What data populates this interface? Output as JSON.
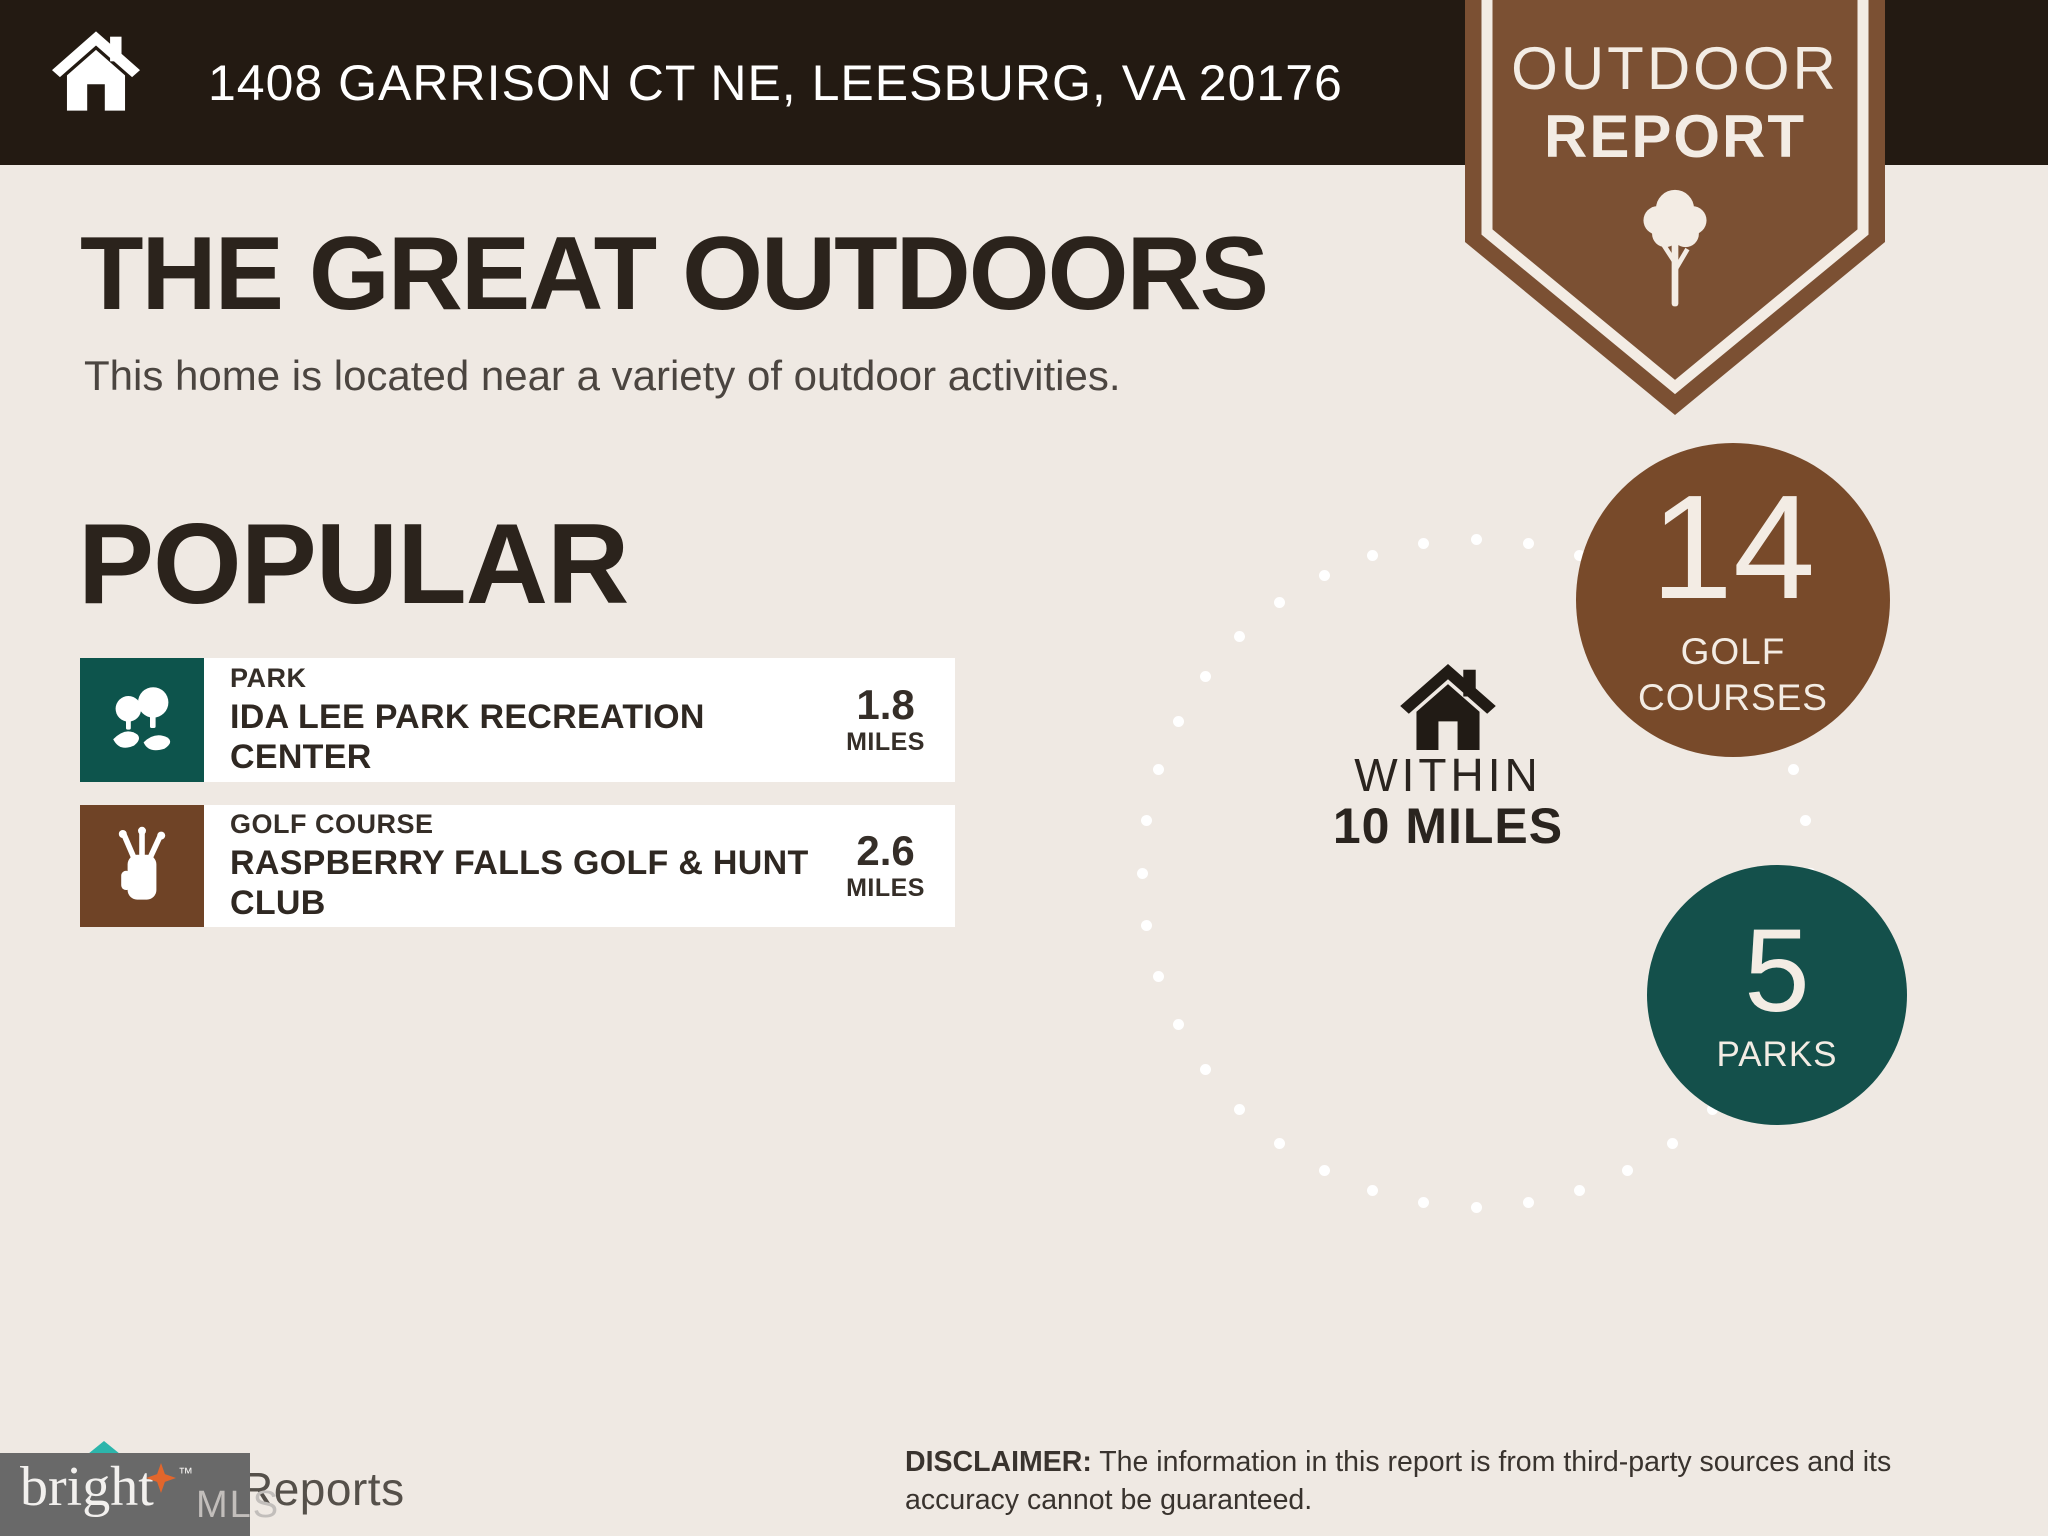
{
  "header": {
    "address": "1408 GARRISON CT NE, LEESBURG, VA 20176"
  },
  "badge": {
    "title_line1": "OUTDOOR",
    "title_line2": "REPORT"
  },
  "intro": {
    "title": "THE GREAT OUTDOORS",
    "subtitle": "This home is located near a variety of outdoor activities."
  },
  "popular": {
    "heading": "POPULAR",
    "items": [
      {
        "category": "PARK",
        "name": "IDA LEE PARK RECREATION CENTER",
        "name_lines": [
          "IDA LEE PARK RECREATION CENTER"
        ],
        "distance": "1.8",
        "unit": "MILES",
        "icon": "park-trees-icon",
        "accent_color": "#0d544c"
      },
      {
        "category": "GOLF COURSE",
        "name": "RASPBERRY FALLS GOLF & HUNT CLUB",
        "name_lines": [
          "RASPBERRY FALLS GOLF & HUNT",
          "CLUB"
        ],
        "distance": "2.6",
        "unit": "MILES",
        "icon": "golf-bag-icon",
        "accent_color": "#6f4326"
      }
    ]
  },
  "radius": {
    "line1": "WITHIN",
    "line2": "10 MILES"
  },
  "stats": [
    {
      "value": "14",
      "label": "GOLF COURSES",
      "label_lines": [
        "GOLF",
        "COURSES"
      ],
      "color": "#784a2a"
    },
    {
      "value": "5",
      "label": "PARKS",
      "label_lines": [
        "PARKS"
      ],
      "color": "#14504b"
    }
  ],
  "footer": {
    "brand": "bright",
    "brand_tm": "™",
    "brand_suffix": "MLS",
    "partner_logo_fragment": "Reports",
    "disclaimer_label": "DISCLAIMER:",
    "disclaimer_line1": "The information in this report is from third-party sources and its",
    "disclaimer_line2": "accuracy cannot be guaranteed."
  },
  "colors": {
    "background": "#efe9e3",
    "header_bar": "#231a12",
    "badge_brown": "#7b5033",
    "golf_brown": "#784a2a",
    "park_teal": "#0d544c",
    "parks_circle_teal": "#14504b",
    "card_white": "#ffffff",
    "cream_text": "#f3ece4",
    "ink": "#2b231c",
    "brand_orange": "#e2662c",
    "partner_teal": "#2cb5ab"
  }
}
